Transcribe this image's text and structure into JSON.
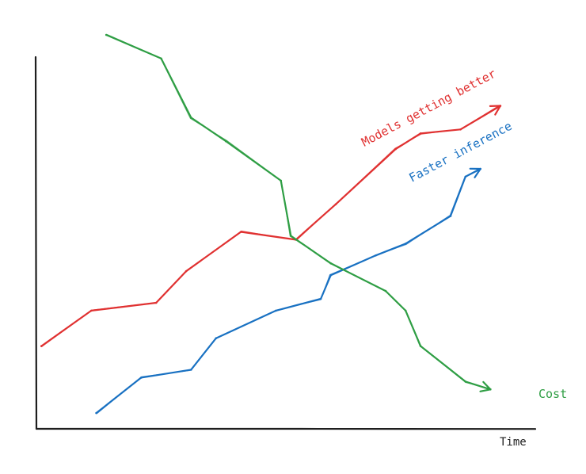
{
  "chart_data": {
    "type": "line",
    "title": "",
    "xlabel": "Time",
    "ylabel": "",
    "grid": false,
    "legend": "inline-annotations",
    "xlim": [
      0,
      100
    ],
    "ylim": [
      0,
      100
    ],
    "series": [
      {
        "name": "Models getting better",
        "color": "#e03131",
        "x": [
          1,
          11,
          24,
          30,
          41,
          52,
          60,
          72,
          77,
          85,
          93
        ],
        "y": [
          21,
          30,
          32,
          40,
          50,
          48,
          57,
          71,
          75,
          76,
          82
        ]
      },
      {
        "name": "Faster inference",
        "color": "#1971c2",
        "x": [
          12,
          21,
          31,
          36,
          48,
          57,
          59,
          68,
          74,
          83,
          86,
          89
        ],
        "y": [
          4,
          13,
          15,
          23,
          30,
          33,
          39,
          44,
          47,
          54,
          64,
          66
        ]
      },
      {
        "name": "Cost",
        "color": "#2f9e44",
        "x": [
          14,
          25,
          31,
          38,
          49,
          51,
          59,
          70,
          74,
          77,
          86,
          91
        ],
        "y": [
          100,
          94,
          79,
          73,
          63,
          49,
          42,
          35,
          30,
          21,
          12,
          10
        ]
      }
    ]
  }
}
